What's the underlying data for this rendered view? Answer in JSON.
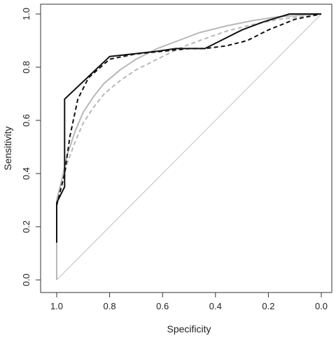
{
  "chart_data": {
    "type": "line",
    "title": "",
    "xlabel": "Specificity",
    "ylabel": "Sensitivity",
    "xlim": [
      1.0,
      0.0
    ],
    "ylim": [
      0.0,
      1.0
    ],
    "x_reversed": true,
    "grid": false,
    "legend": "none",
    "x_ticks": [
      "1.0",
      "0.8",
      "0.6",
      "0.4",
      "0.2",
      "0.0"
    ],
    "y_ticks": [
      "0.0",
      "0.2",
      "0.4",
      "0.6",
      "0.8",
      "1.0"
    ],
    "x_tick_values": [
      1.0,
      0.8,
      0.6,
      0.4,
      0.2,
      0.0
    ],
    "y_tick_values": [
      0.0,
      0.2,
      0.4,
      0.6,
      0.8,
      1.0
    ],
    "reference_line": {
      "from": [
        1.0,
        0.0
      ],
      "to": [
        0.0,
        1.0
      ],
      "color": "#c0c0c0"
    },
    "series": [
      {
        "style": "solid",
        "color": "#111111",
        "points": [
          [
            1.0,
            0.14
          ],
          [
            1.0,
            0.29
          ],
          [
            0.97,
            0.35
          ],
          [
            0.97,
            0.68
          ],
          [
            0.8,
            0.84
          ],
          [
            0.62,
            0.86
          ],
          [
            0.55,
            0.87
          ],
          [
            0.44,
            0.87
          ],
          [
            0.38,
            0.9
          ],
          [
            0.3,
            0.94
          ],
          [
            0.22,
            0.97
          ],
          [
            0.12,
            1.0
          ],
          [
            0.0,
            1.0
          ]
        ]
      },
      {
        "style": "dashed",
        "color": "#111111",
        "points": [
          [
            1.0,
            0.2
          ],
          [
            1.0,
            0.28
          ],
          [
            0.97,
            0.4
          ],
          [
            0.95,
            0.54
          ],
          [
            0.92,
            0.68
          ],
          [
            0.88,
            0.76
          ],
          [
            0.8,
            0.83
          ],
          [
            0.7,
            0.85
          ],
          [
            0.6,
            0.86
          ],
          [
            0.5,
            0.87
          ],
          [
            0.44,
            0.87
          ],
          [
            0.36,
            0.88
          ],
          [
            0.28,
            0.9
          ],
          [
            0.2,
            0.94
          ],
          [
            0.1,
            0.98
          ],
          [
            0.0,
            1.0
          ]
        ]
      },
      {
        "style": "solid",
        "color": "#b8b8b8",
        "points": [
          [
            1.0,
            0.0
          ],
          [
            1.0,
            0.3
          ],
          [
            0.98,
            0.38
          ],
          [
            0.96,
            0.47
          ],
          [
            0.93,
            0.56
          ],
          [
            0.9,
            0.63
          ],
          [
            0.86,
            0.69
          ],
          [
            0.82,
            0.74
          ],
          [
            0.76,
            0.79
          ],
          [
            0.7,
            0.83
          ],
          [
            0.62,
            0.87
          ],
          [
            0.54,
            0.9
          ],
          [
            0.46,
            0.93
          ],
          [
            0.36,
            0.955
          ],
          [
            0.26,
            0.975
          ],
          [
            0.16,
            0.99
          ],
          [
            0.0,
            1.0
          ]
        ]
      },
      {
        "style": "dashed",
        "color": "#b8b8b8",
        "points": [
          [
            1.0,
            0.28
          ],
          [
            0.98,
            0.36
          ],
          [
            0.96,
            0.44
          ],
          [
            0.93,
            0.52
          ],
          [
            0.9,
            0.59
          ],
          [
            0.86,
            0.65
          ],
          [
            0.82,
            0.7
          ],
          [
            0.76,
            0.75
          ],
          [
            0.7,
            0.79
          ],
          [
            0.62,
            0.83
          ],
          [
            0.54,
            0.87
          ],
          [
            0.46,
            0.9
          ],
          [
            0.36,
            0.935
          ],
          [
            0.26,
            0.96
          ],
          [
            0.16,
            0.98
          ],
          [
            0.0,
            1.0
          ]
        ]
      }
    ]
  }
}
